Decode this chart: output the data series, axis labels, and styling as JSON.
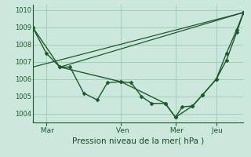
{
  "title": "",
  "xlabel": "Pression niveau de la mer( hPa )",
  "ylabel": "",
  "bg_color": "#cce8dc",
  "grid_color": "#99ccb3",
  "line_color": "#1a5c28",
  "marker_color": "#1a5c28",
  "ylim": [
    1003.5,
    1010.3
  ],
  "yticks": [
    1004,
    1005,
    1006,
    1007,
    1008,
    1009,
    1010
  ],
  "xtick_labels": [
    " Mar",
    " Ven",
    " Mer",
    " Jeu"
  ],
  "xtick_positions": [
    2,
    13,
    21,
    27
  ],
  "xlim": [
    0,
    31
  ],
  "series": [
    {
      "x": [
        0,
        2,
        4,
        5.5,
        7.5,
        9.5,
        11,
        13,
        14.5,
        16,
        17.5,
        19.5,
        21,
        22,
        23.5,
        25,
        27,
        28.5,
        30,
        31
      ],
      "y": [
        1009.0,
        1007.5,
        1006.7,
        1006.7,
        1005.2,
        1004.8,
        1005.8,
        1005.85,
        1005.8,
        1005.0,
        1004.6,
        1004.6,
        1003.8,
        1004.4,
        1004.45,
        1005.1,
        1006.0,
        1007.5,
        1008.85,
        1009.85
      ]
    },
    {
      "x": [
        0,
        4,
        13,
        19.5,
        21,
        23.5,
        25,
        27,
        28.5,
        30,
        31
      ],
      "y": [
        1009.0,
        1006.7,
        1005.85,
        1004.6,
        1003.8,
        1004.45,
        1005.1,
        1006.0,
        1007.1,
        1008.7,
        1009.85
      ]
    },
    {
      "x": [
        0,
        31
      ],
      "y": [
        1006.7,
        1009.85
      ]
    },
    {
      "x": [
        4,
        31
      ],
      "y": [
        1006.7,
        1009.85
      ]
    }
  ]
}
